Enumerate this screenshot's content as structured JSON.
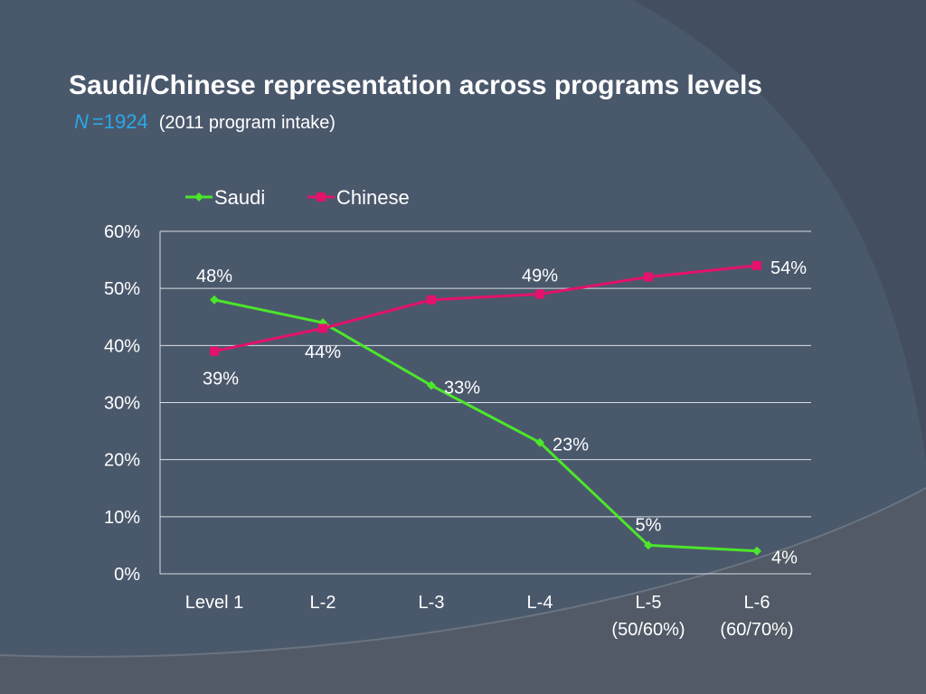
{
  "slide": {
    "title": "Saudi/Chinese representation across programs levels",
    "n_label": "N",
    "n_value": "=1924",
    "subtitle": "(2011 program intake)"
  },
  "colors": {
    "background": "#4a586c",
    "saudi": "#4ce62a",
    "chinese": "#e4126a",
    "title_accent": "#29a9e8"
  },
  "chart_data": {
    "type": "line",
    "categories": [
      [
        "Level 1"
      ],
      [
        "L-2"
      ],
      [
        "L-3"
      ],
      [
        "L-4"
      ],
      [
        "L-5",
        "(50/60%)"
      ],
      [
        "L-6",
        "(60/70%)"
      ]
    ],
    "series": [
      {
        "name": "Saudi",
        "color": "#4ce62a",
        "marker": "diamond",
        "values": [
          48,
          44,
          33,
          23,
          5,
          4
        ],
        "labels": [
          "48%",
          "44%",
          "33%",
          "23%",
          "5%",
          "4%"
        ]
      },
      {
        "name": "Chinese",
        "color": "#e4126a",
        "marker": "square",
        "values": [
          39,
          43,
          48,
          49,
          52,
          54
        ],
        "labels": [
          "39%",
          "",
          "",
          "49%",
          "",
          "54%"
        ]
      }
    ],
    "yticks": [
      "0%",
      "10%",
      "20%",
      "30%",
      "40%",
      "50%",
      "60%"
    ],
    "ylim": [
      0,
      60
    ],
    "grid": true,
    "legend_position": "top"
  }
}
